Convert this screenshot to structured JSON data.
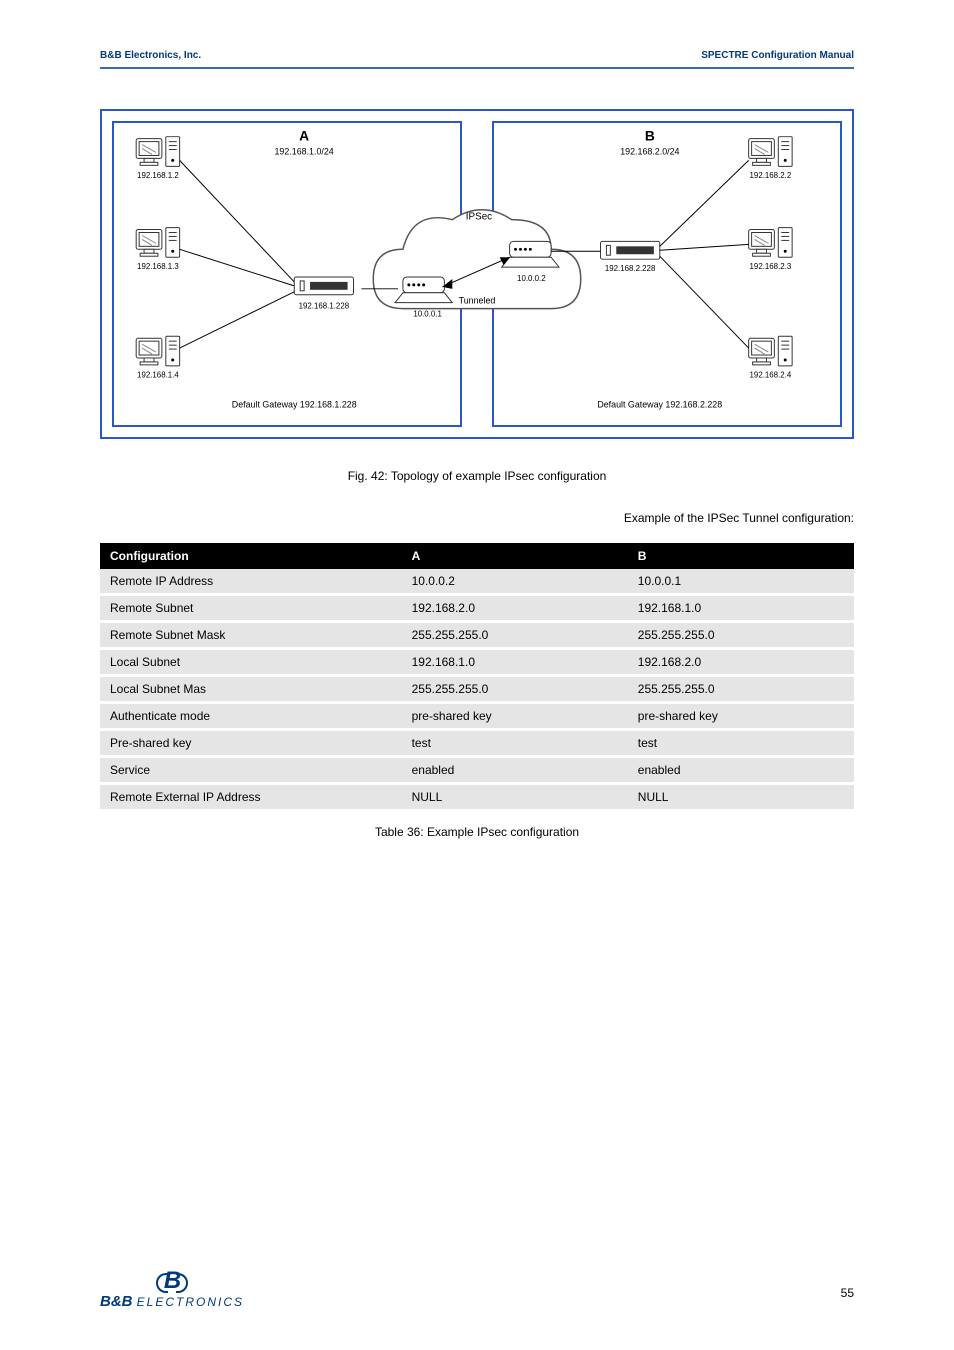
{
  "header": {
    "left": "B&B Electronics, Inc.",
    "right": "SPECTRE Configuration Manual"
  },
  "diagram": {
    "border_color": "#2a56c7",
    "ipsec_label": "IPSec",
    "tunnel_label": "Tunneled",
    "lan_left": {
      "title": "A",
      "subnet": "192.168.1.0/24",
      "default_gw_label": "Default Gateway 192.168.1.228",
      "pcs": [
        {
          "icon": "pc",
          "addr": "192.168.1.2"
        },
        {
          "icon": "pc",
          "addr": "192.168.1.3"
        },
        {
          "icon": "pc",
          "addr": "192.168.1.4"
        }
      ],
      "router_addr": "192.168.1.228",
      "router_wan": "10.0.0.1"
    },
    "lan_right": {
      "title": "B",
      "subnet": "192.168.2.0/24",
      "default_gw_label": "Default Gateway 192.168.2.228",
      "pcs": [
        {
          "icon": "pc",
          "addr": "192.168.2.2"
        },
        {
          "icon": "pc",
          "addr": "192.168.2.3"
        },
        {
          "icon": "pc",
          "addr": "192.168.2.4"
        }
      ],
      "router_addr": "192.168.2.228",
      "router_wan": "10.0.0.2"
    },
    "caption": "Fig. 42: Topology of example IPsec configuration"
  },
  "table": {
    "example_title": "Example of the IPSec Tunnel configuration:",
    "header_bg": "#000000",
    "columns": [
      "Configuration",
      "A",
      "B"
    ],
    "col_widths": [
      "40%",
      "30%",
      "30%"
    ],
    "rows": [
      [
        "Remote IP Address",
        "10.0.0.2",
        "10.0.0.1"
      ],
      [
        "Remote Subnet",
        "192.168.2.0",
        "192.168.1.0"
      ],
      [
        "Remote Subnet Mask",
        "255.255.255.0",
        "255.255.255.0"
      ],
      [
        "Local Subnet",
        "192.168.1.0",
        "192.168.2.0"
      ],
      [
        "Local Subnet Mas",
        "255.255.255.0",
        "255.255.255.0"
      ],
      [
        "Authenticate mode",
        "pre-shared key",
        "pre-shared key"
      ],
      [
        "Pre-shared key",
        "test",
        "test"
      ],
      [
        "Service",
        "enabled",
        "enabled"
      ],
      [
        "Remote External IP Address",
        "NULL",
        "NULL"
      ]
    ],
    "caption": "Table 36: Example IPsec configuration",
    "row_bg": "#e5e5e5"
  },
  "footer": {
    "page_number": "55",
    "logo_b": "B",
    "logo_brand": "B&B",
    "logo_word": "ELECTRONICS"
  }
}
